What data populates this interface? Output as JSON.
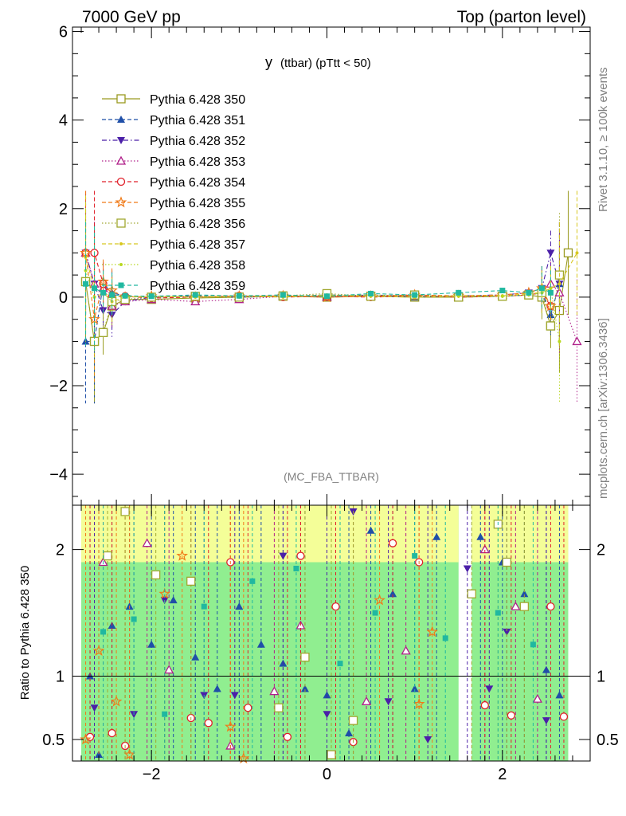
{
  "header": {
    "left": "7000 GeV pp",
    "right": "Top (parton level)"
  },
  "side_labels": {
    "rivet": "Rivet 3.1.10, ≥ 100k events",
    "mcplots": "mcplots.cern.ch [arXiv:1306.3436]"
  },
  "chart_data": [
    {
      "type": "line",
      "title_main": "y",
      "title_sub": "(ttbar)  (pTtt < 50)",
      "watermark": "(MC_FBA_TTBAR)",
      "xlim": [
        -2.9,
        3.0
      ],
      "ylim": [
        -4.7,
        6.1
      ],
      "y_ticks": [
        -4,
        -2,
        0,
        2,
        4,
        6
      ],
      "x_ticks": [
        -2,
        0,
        2
      ],
      "grid": false,
      "legend_position": "top-left",
      "series": [
        {
          "name": "Pythia 6.428 350",
          "color": "#9a9a20",
          "marker": "square-open",
          "dash": "solid",
          "x": [
            -2.75,
            -2.65,
            -2.55,
            -2.45,
            -2.3,
            -2.0,
            -1.5,
            -1.0,
            -0.5,
            0.0,
            0.5,
            1.0,
            1.5,
            2.0,
            2.3,
            2.45,
            2.55,
            2.65,
            2.75
          ],
          "y": [
            0.35,
            -1.0,
            -0.8,
            -0.2,
            -0.05,
            -0.05,
            -0.02,
            0.0,
            0.02,
            0.0,
            0.02,
            0.0,
            0.0,
            0.02,
            0.05,
            0.0,
            -0.65,
            -0.3,
            1.0
          ]
        },
        {
          "name": "Pythia 6.428 351",
          "color": "#1f4fa8",
          "marker": "triangle-up-filled",
          "dash": "dashed",
          "x": [
            -2.75,
            -2.65,
            -2.55,
            -2.45,
            -2.3,
            -2.0,
            -1.5,
            -1.0,
            -0.5,
            0.0,
            0.5,
            1.0,
            1.5,
            2.0,
            2.3,
            2.45,
            2.55,
            2.65
          ],
          "y": [
            -1.0,
            -1.0,
            0.3,
            0.1,
            0.02,
            0.0,
            0.03,
            0.0,
            0.02,
            0.05,
            0.03,
            0.0,
            0.02,
            0.02,
            0.05,
            0.1,
            -0.4,
            0.3
          ]
        },
        {
          "name": "Pythia 6.428 352",
          "color": "#4b1fa8",
          "marker": "triangle-down-filled",
          "dash": "dashdot",
          "x": [
            -2.75,
            -2.65,
            -2.55,
            -2.45,
            -2.3,
            -2.0,
            -1.5,
            -1.0,
            -0.5,
            0.0,
            0.5,
            1.0,
            1.5,
            2.0,
            2.3,
            2.45,
            2.55,
            2.65
          ],
          "y": [
            1.0,
            0.3,
            -0.3,
            -0.4,
            -0.1,
            0.0,
            0.02,
            0.0,
            0.03,
            0.02,
            0.05,
            0.02,
            0.03,
            0.05,
            0.1,
            0.2,
            1.0,
            0.3
          ]
        },
        {
          "name": "Pythia 6.428 353",
          "color": "#b0208a",
          "marker": "triangle-up-open",
          "dash": "dotted",
          "x": [
            -2.75,
            -2.65,
            -2.55,
            -2.45,
            -2.3,
            -2.0,
            -1.5,
            -1.0,
            -0.5,
            0.0,
            0.5,
            1.0,
            1.5,
            2.0,
            2.3,
            2.45,
            2.55,
            2.65,
            2.85
          ],
          "y": [
            1.0,
            0.3,
            0.2,
            -0.2,
            -0.1,
            -0.05,
            -0.1,
            -0.05,
            0.02,
            0.0,
            0.03,
            0.05,
            0.0,
            0.05,
            0.1,
            0.2,
            0.3,
            0.1,
            -1.0
          ]
        },
        {
          "name": "Pythia 6.428 354",
          "color": "#e0202a",
          "marker": "circle-open",
          "dash": "dashed",
          "x": [
            -2.75,
            -2.65,
            -2.55,
            -2.45,
            -2.3,
            -2.0,
            -1.5,
            -1.0,
            -0.5,
            0.0,
            0.5,
            1.0,
            1.5,
            2.0,
            2.3,
            2.45,
            2.55
          ],
          "y": [
            1.0,
            1.0,
            0.3,
            0.0,
            0.02,
            -0.02,
            0.0,
            0.03,
            0.0,
            0.02,
            0.0,
            0.03,
            0.0,
            0.02,
            0.05,
            0.1,
            -0.2
          ]
        },
        {
          "name": "Pythia 6.428 355",
          "color": "#f07a18",
          "marker": "star-open",
          "dash": "dashed",
          "x": [
            -2.75,
            -2.65,
            -2.55,
            -2.45,
            -2.3,
            -2.0,
            -1.5,
            -1.0,
            -0.5,
            0.0,
            0.5,
            1.0,
            1.5,
            2.0,
            2.3,
            2.45,
            2.55
          ],
          "y": [
            1.0,
            -0.5,
            0.35,
            0.15,
            0.0,
            0.02,
            0.0,
            0.02,
            0.03,
            0.0,
            0.02,
            0.05,
            0.03,
            0.05,
            0.1,
            0.2,
            -0.2
          ]
        },
        {
          "name": "Pythia 6.428 356",
          "color": "#a0a830",
          "marker": "square-open",
          "dash": "dotted",
          "x": [
            -2.75,
            -2.65,
            -2.55,
            -2.45,
            -2.3,
            -2.0,
            -1.5,
            -1.0,
            -0.5,
            0.0,
            0.5,
            1.0,
            1.5,
            2.0,
            2.3,
            2.45,
            2.55,
            2.65
          ],
          "y": [
            0.35,
            -1.0,
            -0.8,
            -0.1,
            -0.05,
            0.0,
            0.02,
            0.0,
            0.03,
            0.08,
            0.02,
            0.05,
            0.0,
            0.02,
            0.05,
            0.1,
            -0.65,
            0.5
          ]
        },
        {
          "name": "Pythia 6.428 357",
          "color": "#d8c820",
          "marker": "dot",
          "dash": "dashed",
          "x": [
            -2.75,
            -2.65,
            -2.55,
            -2.45,
            -2.3,
            -2.0,
            -1.5,
            -1.0,
            -0.5,
            0.0,
            0.5,
            1.0,
            1.5,
            2.0,
            2.3,
            2.45,
            2.55,
            2.65,
            2.85
          ],
          "y": [
            0.9,
            0.2,
            0.1,
            -0.1,
            0.0,
            0.02,
            0.0,
            0.03,
            0.0,
            0.05,
            0.02,
            0.0,
            0.02,
            0.03,
            0.08,
            0.1,
            0.2,
            0.3,
            1.0
          ]
        },
        {
          "name": "Pythia 6.428 358",
          "color": "#b8d820",
          "marker": "dot",
          "dash": "dotted",
          "x": [
            -2.75,
            -2.65,
            -2.55,
            -2.45,
            -2.3,
            -2.0,
            -1.5,
            -1.0,
            -0.5,
            0.0,
            0.5,
            1.0,
            1.5,
            2.0,
            2.3,
            2.45,
            2.55,
            2.65
          ],
          "y": [
            0.6,
            0.0,
            0.1,
            0.0,
            0.02,
            0.0,
            0.02,
            0.0,
            0.02,
            0.03,
            0.05,
            0.02,
            0.03,
            0.02,
            0.05,
            0.1,
            0.2,
            -1.0
          ]
        },
        {
          "name": "Pythia 6.428 359",
          "color": "#20b8a0",
          "marker": "square-filled",
          "dash": "dashed",
          "x": [
            -2.75,
            -2.65,
            -2.55,
            -2.45,
            -2.3,
            -2.0,
            -1.5,
            -1.0,
            -0.5,
            0.0,
            0.5,
            1.0,
            1.5,
            2.0,
            2.3,
            2.45,
            2.55
          ],
          "y": [
            0.3,
            0.2,
            0.1,
            0.05,
            0.03,
            0.02,
            0.05,
            0.03,
            0.05,
            0.02,
            0.08,
            0.05,
            0.1,
            0.15,
            0.1,
            0.2,
            0.1
          ]
        }
      ]
    },
    {
      "type": "line",
      "ylabel": "Ratio to Pythia 6.428 350",
      "xlim": [
        -2.9,
        3.0
      ],
      "ylim": [
        0.33,
        2.35
      ],
      "y_ticks": [
        0.5,
        1,
        2
      ],
      "x_ticks": [
        -2,
        0,
        2
      ],
      "reference_line": 1,
      "bands": {
        "x_ranges": [
          [
            -2.8,
            1.5
          ],
          [
            1.65,
            2.75
          ]
        ],
        "green_range": [
          0.33,
          2.35
        ],
        "yellow_top": [
          1.9,
          2.35
        ],
        "colors": {
          "green": "#90ee90",
          "yellow": "#ffff99"
        }
      },
      "series": [
        {
          "name": "Pythia 6.428 351",
          "color": "#1f4fa8",
          "marker": "triangle-up-filled",
          "x": [
            -2.7,
            -2.6,
            -2.45,
            -2.25,
            -2.0,
            -1.75,
            -1.5,
            -1.25,
            -1.0,
            -0.75,
            -0.5,
            -0.25,
            0.0,
            0.25,
            0.5,
            0.75,
            1.0,
            1.25,
            1.75,
            2.0,
            2.25,
            2.5,
            2.65
          ],
          "y": [
            1.0,
            0.38,
            1.4,
            1.55,
            1.25,
            1.6,
            1.15,
            0.9,
            1.55,
            1.25,
            1.1,
            0.9,
            0.85,
            0.55,
            2.15,
            1.65,
            0.9,
            2.1,
            2.1,
            1.9,
            1.65,
            1.05,
            0.85
          ]
        },
        {
          "name": "Pythia 6.428 352",
          "color": "#4b1fa8",
          "marker": "triangle-down-filled",
          "x": [
            -2.65,
            -2.2,
            -1.85,
            -1.4,
            -1.05,
            -0.5,
            0.0,
            0.3,
            0.7,
            1.15,
            1.6,
            1.85,
            2.05,
            2.5
          ],
          "y": [
            0.75,
            0.7,
            1.6,
            0.85,
            0.85,
            1.95,
            0.7,
            2.3,
            0.8,
            0.5,
            1.85,
            0.9,
            1.35,
            0.65
          ]
        },
        {
          "name": "Pythia 6.428 353",
          "color": "#b0208a",
          "marker": "triangle-up-open",
          "x": [
            -2.55,
            -2.05,
            -1.8,
            -1.1,
            -0.6,
            -0.3,
            0.45,
            0.9,
            1.8,
            2.15,
            2.4
          ],
          "y": [
            1.9,
            2.05,
            1.05,
            0.45,
            0.88,
            1.4,
            0.8,
            1.2,
            2.0,
            1.55,
            0.82
          ]
        },
        {
          "name": "Pythia 6.428 354",
          "color": "#e0202a",
          "marker": "circle-open",
          "x": [
            -2.7,
            -2.45,
            -2.3,
            -1.55,
            -1.35,
            -1.1,
            -0.9,
            -0.45,
            -0.3,
            0.1,
            0.3,
            0.75,
            1.05,
            1.8,
            2.1,
            2.55,
            2.7
          ],
          "y": [
            0.52,
            0.55,
            0.45,
            0.67,
            0.63,
            1.9,
            0.75,
            0.52,
            1.95,
            1.55,
            0.48,
            2.05,
            1.9,
            0.77,
            0.69,
            1.55,
            0.68
          ]
        },
        {
          "name": "Pythia 6.428 355",
          "color": "#f07a18",
          "marker": "star-open",
          "x": [
            -2.75,
            -2.6,
            -2.4,
            -2.25,
            -1.85,
            -1.65,
            -1.1,
            -0.95,
            0.6,
            1.05,
            1.2
          ],
          "y": [
            0.5,
            1.2,
            0.8,
            0.38,
            1.65,
            1.95,
            0.6,
            0.35,
            1.6,
            0.78,
            1.35
          ]
        },
        {
          "name": "Pythia 6.428 356",
          "color": "#a0a830",
          "marker": "square-open",
          "x": [
            -2.5,
            -2.3,
            -1.95,
            -1.55,
            -0.55,
            -0.25,
            0.05,
            0.3,
            1.65,
            1.95,
            2.05,
            2.25
          ],
          "y": [
            1.95,
            2.3,
            1.8,
            1.75,
            0.75,
            1.15,
            0.38,
            0.65,
            1.65,
            2.2,
            1.9,
            1.55
          ]
        },
        {
          "name": "Pythia 6.428 359",
          "color": "#20b8a0",
          "marker": "square-filled",
          "x": [
            -2.55,
            -2.2,
            -1.85,
            -1.4,
            -0.85,
            -0.35,
            0.15,
            0.55,
            1.0,
            1.35,
            1.95,
            2.35
          ],
          "y": [
            1.35,
            1.45,
            0.7,
            1.55,
            1.75,
            1.85,
            1.1,
            1.5,
            1.95,
            1.3,
            1.5,
            1.25
          ]
        }
      ]
    }
  ]
}
